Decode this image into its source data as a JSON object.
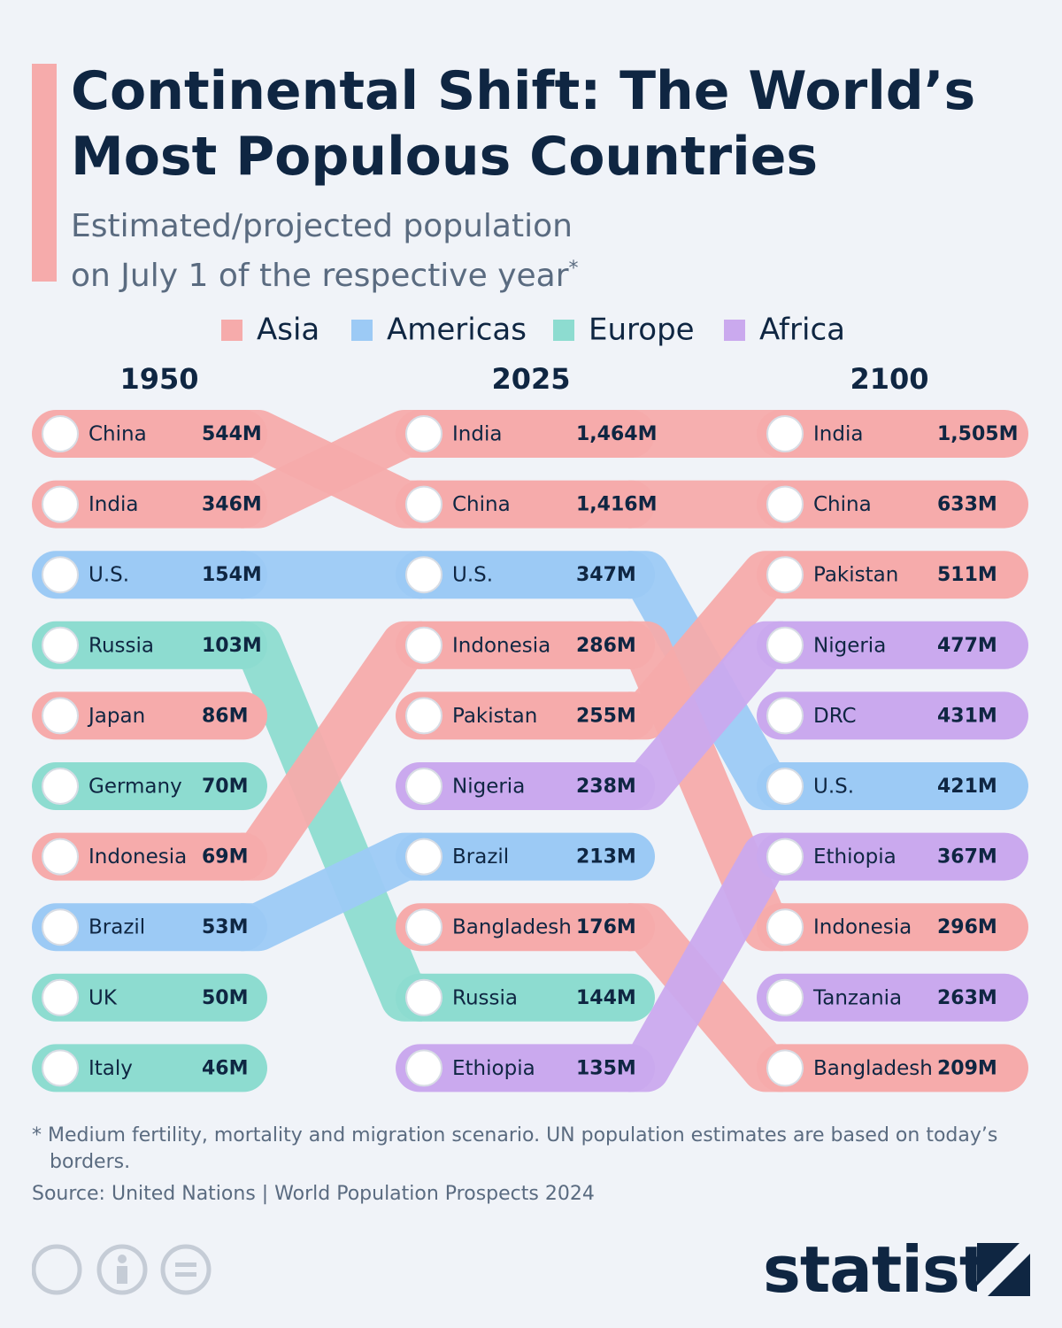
{
  "chart_data": {
    "type": "bump",
    "title": "Continental Shift: The World’s Most Populous Countries",
    "subtitle": "Estimated/projected population on July 1 of the respective year",
    "subtitle_mark": "*",
    "series": [
      {
        "name": "Asia",
        "color": "#f6abab"
      },
      {
        "name": "Americas",
        "color": "#9ccaf5"
      },
      {
        "name": "Europe",
        "color": "#8ddcd0"
      },
      {
        "name": "Africa",
        "color": "#caa9ee"
      }
    ],
    "columns": [
      {
        "year": "1950",
        "categories": [
          "China",
          "India",
          "U.S.",
          "Russia",
          "Japan",
          "Germany",
          "Indonesia",
          "Brazil",
          "UK",
          "Italy"
        ],
        "values": [
          544,
          346,
          154,
          103,
          86,
          70,
          69,
          53,
          50,
          46
        ],
        "value_labels": [
          "544M",
          "346M",
          "154M",
          "103M",
          "86M",
          "70M",
          "69M",
          "53M",
          "50M",
          "46M"
        ],
        "regions": [
          "Asia",
          "Asia",
          "Americas",
          "Europe",
          "Asia",
          "Europe",
          "Asia",
          "Americas",
          "Europe",
          "Europe"
        ]
      },
      {
        "year": "2025",
        "categories": [
          "India",
          "China",
          "U.S.",
          "Indonesia",
          "Pakistan",
          "Nigeria",
          "Brazil",
          "Bangladesh",
          "Russia",
          "Ethiopia"
        ],
        "values": [
          1464,
          1416,
          347,
          286,
          255,
          238,
          213,
          176,
          144,
          135
        ],
        "value_labels": [
          "1,464M",
          "1,416M",
          "347M",
          "286M",
          "255M",
          "238M",
          "213M",
          "176M",
          "144M",
          "135M"
        ],
        "regions": [
          "Asia",
          "Asia",
          "Americas",
          "Asia",
          "Asia",
          "Africa",
          "Americas",
          "Asia",
          "Europe",
          "Africa"
        ]
      },
      {
        "year": "2100",
        "categories": [
          "India",
          "China",
          "Pakistan",
          "Nigeria",
          "DRC",
          "U.S.",
          "Ethiopia",
          "Indonesia",
          "Tanzania",
          "Bangladesh"
        ],
        "values": [
          1505,
          633,
          511,
          477,
          431,
          421,
          367,
          296,
          263,
          209
        ],
        "value_labels": [
          "1,505M",
          "633M",
          "511M",
          "477M",
          "431M",
          "421M",
          "367M",
          "296M",
          "263M",
          "209M"
        ],
        "regions": [
          "Asia",
          "Asia",
          "Asia",
          "Africa",
          "Africa",
          "Americas",
          "Africa",
          "Asia",
          "Africa",
          "Asia"
        ]
      }
    ],
    "footnote": "* Medium fertility, mortality and migration scenario. UN population estimates are based on today’s borders.",
    "source": "Source: United Nations | World Population Prospects 2024",
    "brand": "statista"
  }
}
